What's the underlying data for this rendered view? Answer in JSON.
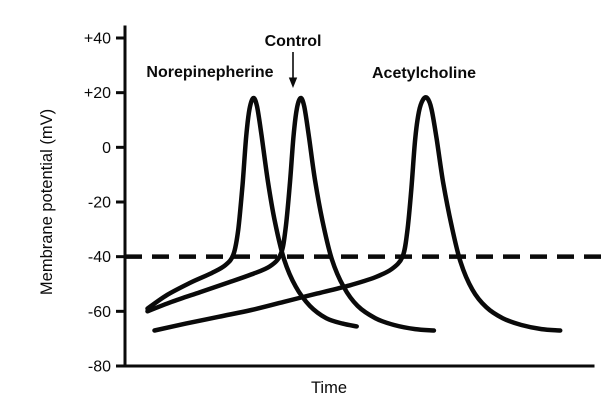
{
  "figure": {
    "background": "#ffffff",
    "line_color": "#0a0a0a"
  },
  "chart_data": {
    "type": "line",
    "title": "",
    "xlabel": "Time",
    "ylabel": "Membrane potential (mV)",
    "ylim": [
      -80,
      40
    ],
    "xlim_units": [
      0,
      100
    ],
    "grid": false,
    "legend": "none (curves labeled by annotations)",
    "yticks": [
      40,
      20,
      0,
      -20,
      -40,
      -60,
      -80
    ],
    "ytick_labels": [
      "+40",
      "+20",
      "0",
      "-20",
      "-40",
      "-60",
      "-80"
    ],
    "threshold_line": {
      "mV": -40,
      "style": "dashed"
    },
    "series": [
      {
        "name": "Norepinepherine",
        "peak_mV": 18,
        "points": [
          [
            4.8,
            -59
          ],
          [
            9,
            -54
          ],
          [
            14,
            -49.5
          ],
          [
            18.5,
            -46
          ],
          [
            21.5,
            -43
          ],
          [
            23.2,
            -39
          ],
          [
            24.2,
            -30
          ],
          [
            25.1,
            -14
          ],
          [
            25.9,
            4
          ],
          [
            26.6,
            14
          ],
          [
            27.4,
            18
          ],
          [
            28.2,
            15
          ],
          [
            29.2,
            4
          ],
          [
            30.5,
            -12
          ],
          [
            32,
            -27
          ],
          [
            34,
            -41
          ],
          [
            36.5,
            -51
          ],
          [
            39.5,
            -58
          ],
          [
            43,
            -62.5
          ],
          [
            46.5,
            -64.5
          ],
          [
            49.5,
            -65.5
          ]
        ]
      },
      {
        "name": "Control",
        "peak_mV": 18,
        "points": [
          [
            4.8,
            -60
          ],
          [
            10,
            -56.5
          ],
          [
            16,
            -53
          ],
          [
            22,
            -49.5
          ],
          [
            27,
            -46.5
          ],
          [
            31,
            -43.5
          ],
          [
            33.3,
            -39
          ],
          [
            34.3,
            -30
          ],
          [
            35.2,
            -14
          ],
          [
            36,
            4
          ],
          [
            36.7,
            14
          ],
          [
            37.5,
            18
          ],
          [
            38.3,
            15
          ],
          [
            39.3,
            4
          ],
          [
            40.6,
            -12
          ],
          [
            42.2,
            -27
          ],
          [
            44.2,
            -41
          ],
          [
            46.7,
            -51
          ],
          [
            49.7,
            -58
          ],
          [
            53.5,
            -62.5
          ],
          [
            57.5,
            -65
          ],
          [
            62,
            -66.5
          ],
          [
            66,
            -67
          ]
        ]
      },
      {
        "name": "Acetylcholine",
        "peak_mV": 18,
        "points": [
          [
            6.3,
            -67
          ],
          [
            13,
            -64.5
          ],
          [
            20,
            -62
          ],
          [
            27,
            -59.5
          ],
          [
            34,
            -56.5
          ],
          [
            41,
            -53.5
          ],
          [
            48,
            -50.5
          ],
          [
            53.5,
            -47.5
          ],
          [
            57,
            -44.5
          ],
          [
            59.3,
            -40
          ],
          [
            60.3,
            -31
          ],
          [
            61.2,
            -15
          ],
          [
            62,
            3
          ],
          [
            62.8,
            13
          ],
          [
            63.7,
            17.5
          ],
          [
            64.6,
            18
          ],
          [
            65.5,
            14
          ],
          [
            66.6,
            3
          ],
          [
            68,
            -13
          ],
          [
            69.7,
            -28
          ],
          [
            71.7,
            -42
          ],
          [
            74.2,
            -52
          ],
          [
            77.2,
            -58.5
          ],
          [
            80.7,
            -62.5
          ],
          [
            84.7,
            -65
          ],
          [
            89,
            -66.5
          ],
          [
            93,
            -67
          ]
        ]
      }
    ],
    "annotations": [
      {
        "text": "Norepinepherine",
        "t": 18,
        "mV": 25.5,
        "arrow": false
      },
      {
        "text": "Control",
        "t": 36,
        "mV": 37,
        "arrow": true
      },
      {
        "text": "Acetylcholine",
        "t": 64,
        "mV": 25,
        "arrow": false
      }
    ]
  }
}
